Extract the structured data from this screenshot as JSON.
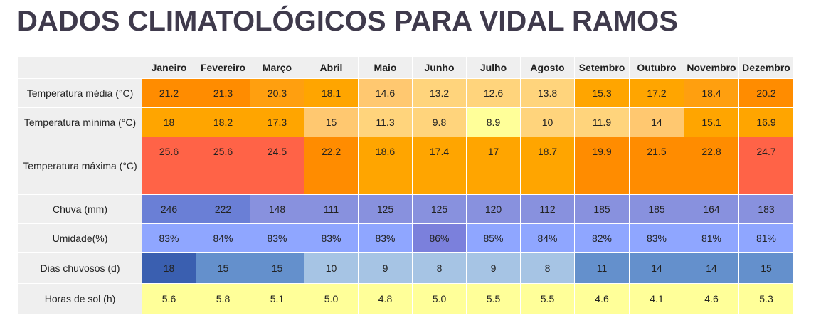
{
  "title": "DADOS CLIMATOLÓGICOS PARA VIDAL RAMOS",
  "months": [
    "Janeiro",
    "Fevereiro",
    "Março",
    "Abril",
    "Maio",
    "Junho",
    "Julho",
    "Agosto",
    "Setembro",
    "Outubro",
    "Novembro",
    "Dezembro"
  ],
  "rows": [
    {
      "label": "Temperatura média (°C)",
      "values": [
        "21.2",
        "21.3",
        "20.3",
        "18.1",
        "14.6",
        "13.2",
        "12.6",
        "13.8",
        "15.3",
        "17.2",
        "18.4",
        "20.2"
      ],
      "colors": [
        "#ff8c00",
        "#ff8c00",
        "#ff9f0f",
        "#ffa500",
        "#ffc870",
        "#ffd47c",
        "#ffd47c",
        "#ffd47c",
        "#ffa500",
        "#ffa500",
        "#ff9f0f",
        "#ff8c00"
      ]
    },
    {
      "label": "Temperatura mínima (°C)",
      "values": [
        "18",
        "18.2",
        "17.3",
        "15",
        "11.3",
        "9.8",
        "8.9",
        "10",
        "11.9",
        "14",
        "15.1",
        "16.9"
      ],
      "colors": [
        "#ffa500",
        "#ffa500",
        "#ffa500",
        "#ffc870",
        "#ffd47c",
        "#ffd47c",
        "#ffff99",
        "#ffd47c",
        "#ffd47c",
        "#ffc870",
        "#ffa500",
        "#ffa500"
      ]
    },
    {
      "label": "Temperatura máxima (°C)",
      "values": [
        "25.6",
        "25.6",
        "24.5",
        "22.2",
        "18.6",
        "17.4",
        "17",
        "18.7",
        "19.9",
        "21.5",
        "22.8",
        "24.7"
      ],
      "colors": [
        "#ff6347",
        "#ff6347",
        "#ff6347",
        "#ff8c00",
        "#ffa500",
        "#ffa500",
        "#ffa500",
        "#ffa500",
        "#ff8c00",
        "#ff8c00",
        "#ff8c00",
        "#ff6347"
      ]
    },
    {
      "label": "Chuva (mm)",
      "values": [
        "246",
        "222",
        "148",
        "111",
        "125",
        "125",
        "120",
        "112",
        "185",
        "185",
        "164",
        "183"
      ],
      "colors": [
        "#6a7fd6",
        "#6a7fd6",
        "#8891de",
        "#8891de",
        "#8891de",
        "#8891de",
        "#8891de",
        "#8891de",
        "#8891de",
        "#8891de",
        "#8891de",
        "#8891de"
      ]
    },
    {
      "label": "Umidade(%)",
      "values": [
        "83%",
        "84%",
        "83%",
        "83%",
        "83%",
        "86%",
        "85%",
        "84%",
        "82%",
        "83%",
        "81%",
        "81%"
      ],
      "colors": [
        "#8fa6ff",
        "#8fa6ff",
        "#8fa6ff",
        "#8fa6ff",
        "#8fa6ff",
        "#7b80dc",
        "#8fa6ff",
        "#8fa6ff",
        "#8fa6ff",
        "#8fa6ff",
        "#8fa6ff",
        "#8fa6ff"
      ]
    },
    {
      "label": "Dias chuvosos (d)",
      "values": [
        "18",
        "15",
        "15",
        "10",
        "9",
        "8",
        "9",
        "8",
        "11",
        "14",
        "14",
        "15"
      ],
      "colors": [
        "#3a5fb0",
        "#6490cc",
        "#6490cc",
        "#a6c4e4",
        "#a6c4e4",
        "#a6c4e4",
        "#a6c4e4",
        "#a6c4e4",
        "#6490cc",
        "#6490cc",
        "#6490cc",
        "#6490cc"
      ]
    },
    {
      "label": "Horas de sol (h)",
      "values": [
        "5.6",
        "5.8",
        "5.1",
        "5.0",
        "4.8",
        "5.0",
        "5.5",
        "5.5",
        "4.6",
        "4.1",
        "4.6",
        "5.3"
      ],
      "colors": [
        "#ffff99",
        "#ffff99",
        "#ffff99",
        "#ffff99",
        "#ffff99",
        "#ffff99",
        "#ffff99",
        "#ffff99",
        "#ffff99",
        "#ffff99",
        "#ffff99",
        "#ffff99"
      ]
    }
  ]
}
